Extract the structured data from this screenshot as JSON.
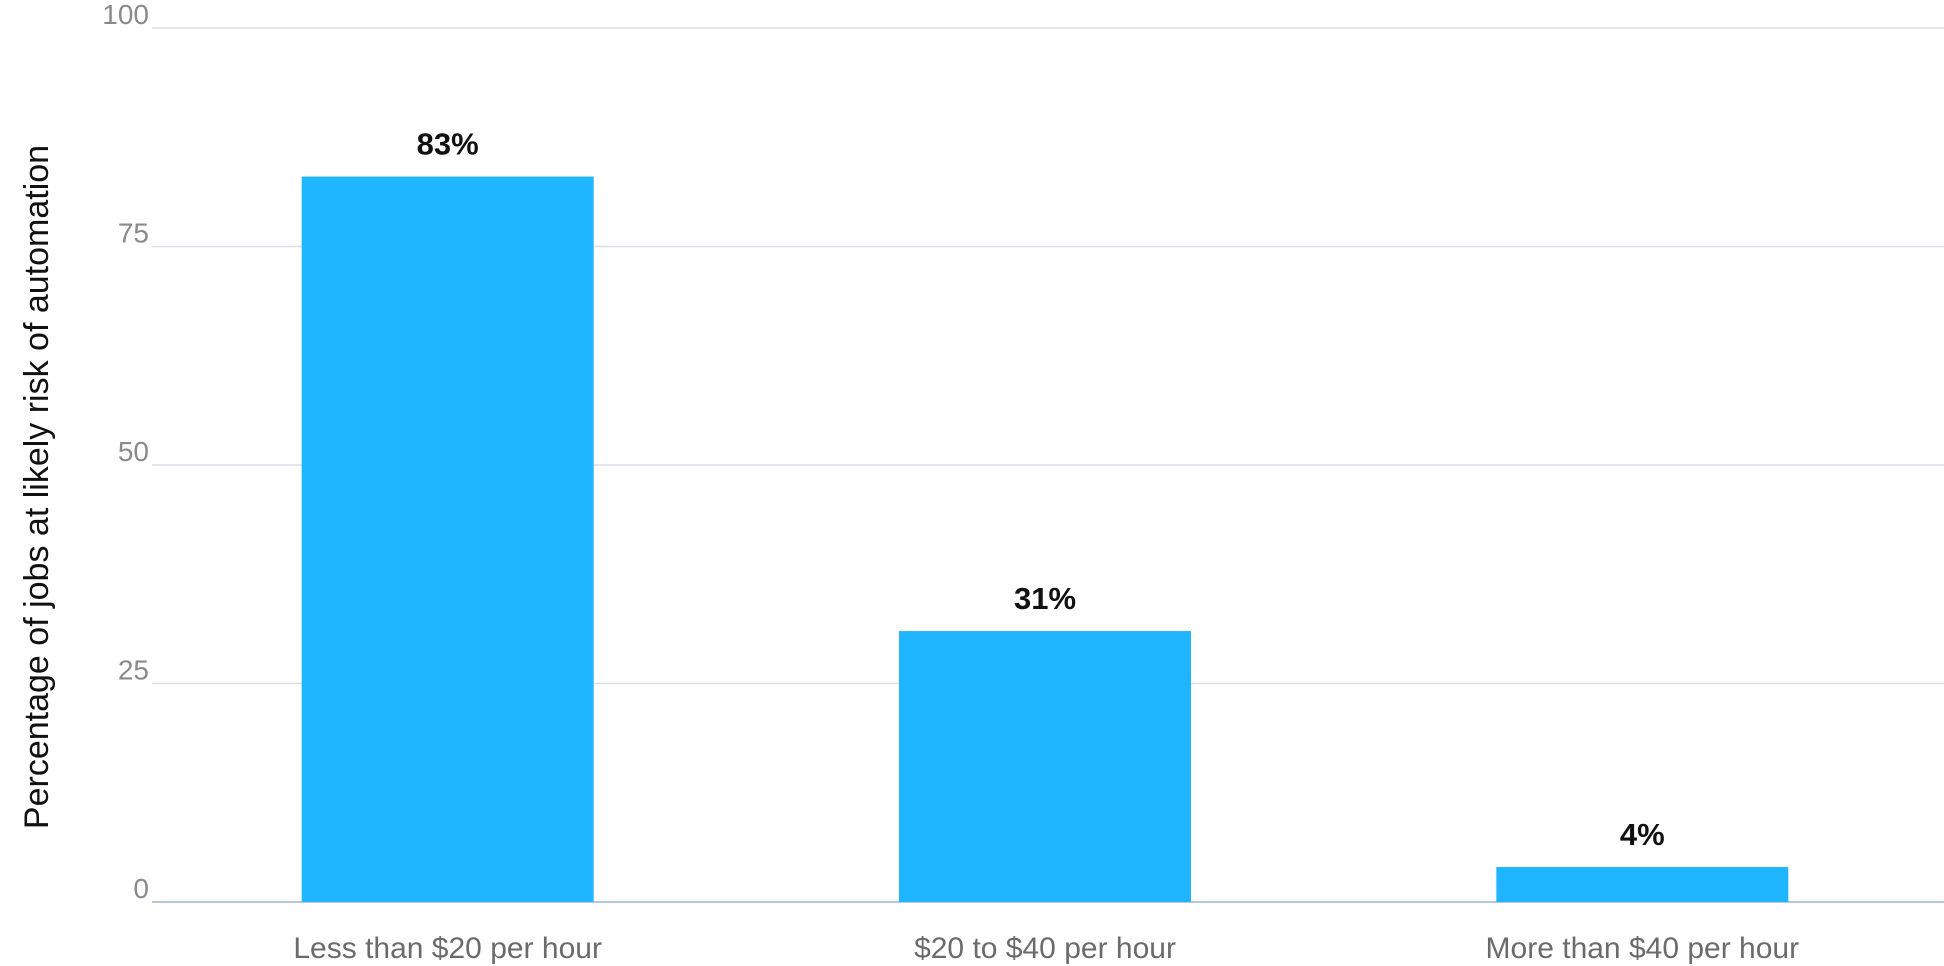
{
  "chart_data": {
    "type": "bar",
    "categories": [
      "Less than $20 per hour",
      "$20 to $40 per hour",
      "More than $40 per hour"
    ],
    "values": [
      83,
      31,
      4
    ],
    "value_labels": [
      "83%",
      "31%",
      "4%"
    ],
    "title": "",
    "xlabel": "",
    "ylabel": "Percentage of jobs at likely risk of automation",
    "ylim": [
      0,
      100
    ],
    "yticks": [
      "0",
      "25",
      "50",
      "75",
      "100"
    ],
    "grid": true,
    "bar_color": "#1FB6FF",
    "grid_color": "#d9dde6",
    "baseline_color": "#b8c6e0"
  }
}
